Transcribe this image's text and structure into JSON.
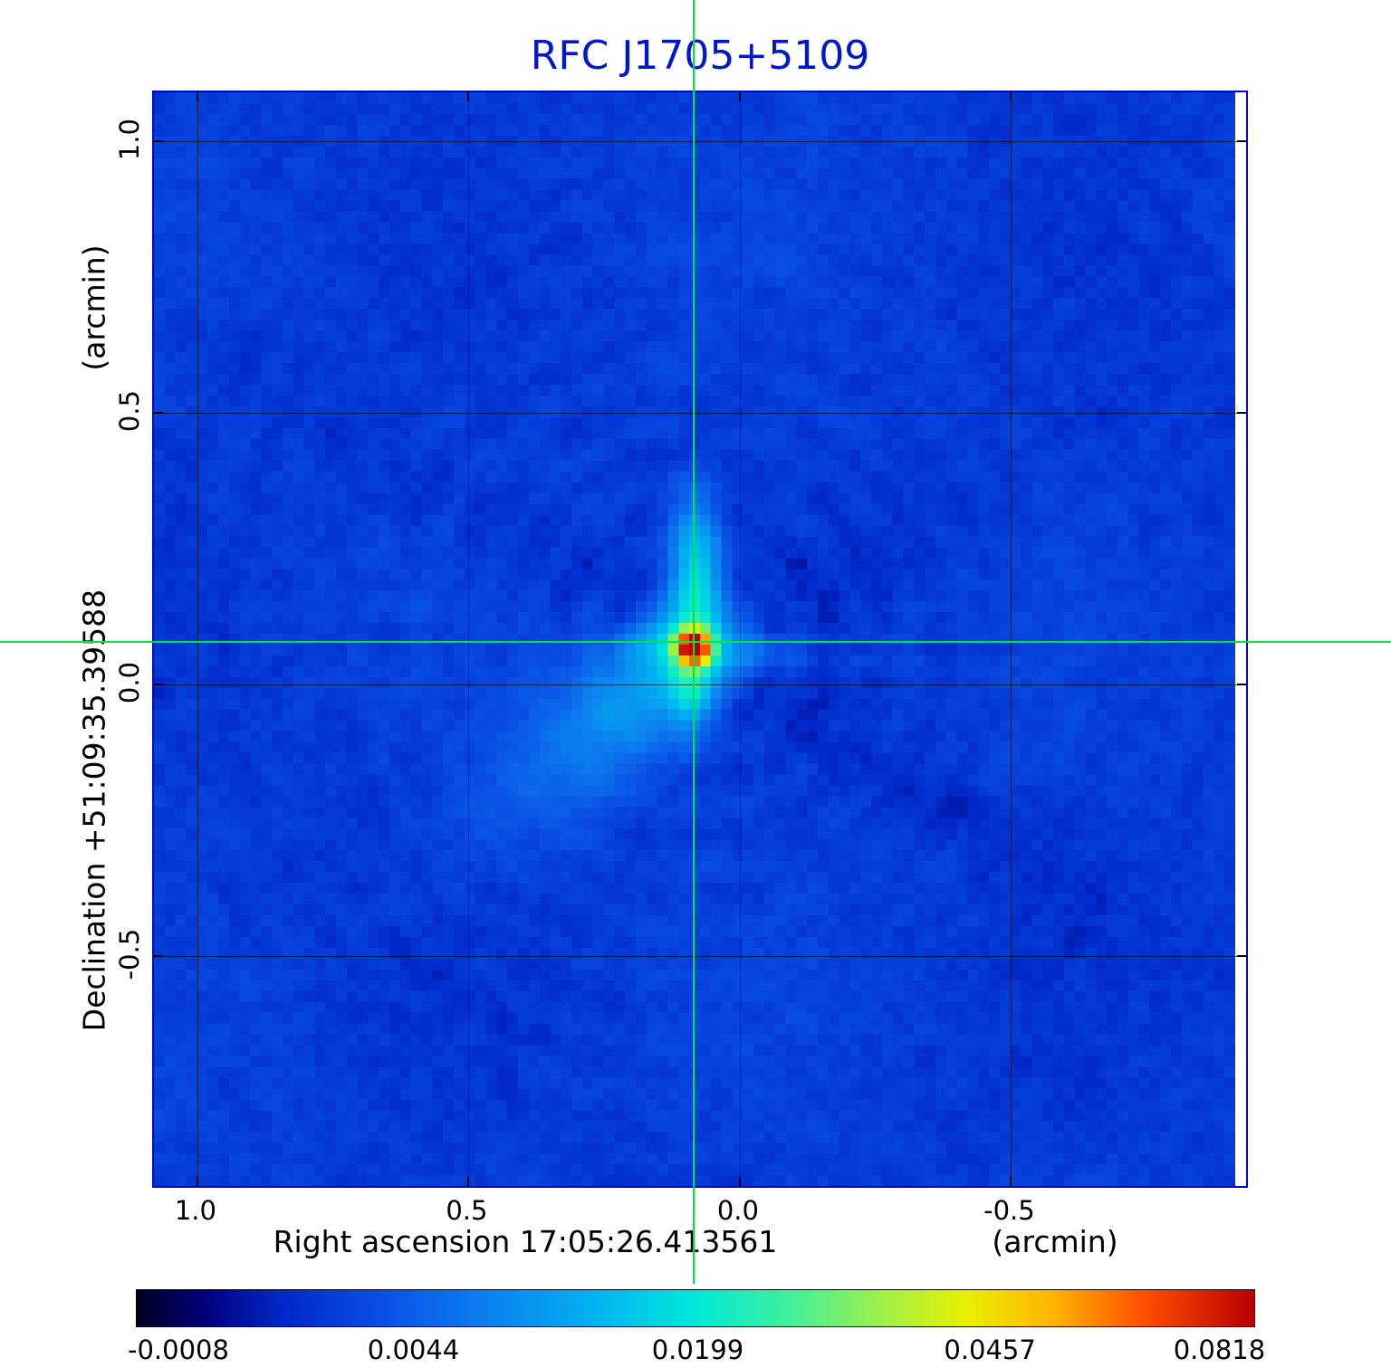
{
  "colors": {
    "page_bg": "#ffffff",
    "title": "#0018cc",
    "frame": "#0008c8",
    "grid": "#000000",
    "crosshair": "#00e640",
    "text": "#000000"
  },
  "chart_data": {
    "type": "heatmap",
    "title": "RFC J1705+5109",
    "xlabel": "Right ascension  17:05:26.413561",
    "xunit": "(arcmin)",
    "ylabel": "Declination  +51:09:35.39588",
    "yunit": "(arcmin)",
    "x_range": [
      1.08,
      -0.94
    ],
    "y_range": [
      1.09,
      -0.93
    ],
    "x_ticks": [
      {
        "value": 1.0,
        "label": "1.0"
      },
      {
        "value": 0.5,
        "label": "0.5"
      },
      {
        "value": 0.0,
        "label": "0.0"
      },
      {
        "value": -0.5,
        "label": "-0.5"
      }
    ],
    "y_ticks": [
      {
        "value": 1.0,
        "label": "1.0"
      },
      {
        "value": 0.5,
        "label": "0.5"
      },
      {
        "value": 0.0,
        "label": "0.0"
      },
      {
        "value": -0.5,
        "label": "-0.5"
      }
    ],
    "source": {
      "ra_offset_arcmin": 0.082,
      "dec_offset_arcmin": 0.075,
      "peak": 0.0818
    },
    "colorbar": {
      "min": -0.0008,
      "max": 0.0818,
      "scale": "sqrt",
      "ticks": [
        {
          "label": "-0.0008",
          "pos": 0.038
        },
        {
          "label": "0.0044",
          "pos": 0.248
        },
        {
          "label": "0.0199",
          "pos": 0.502
        },
        {
          "label": "0.0457",
          "pos": 0.763
        },
        {
          "label": "0.0818",
          "pos": 0.968
        }
      ],
      "stops": [
        {
          "pos": 0.0,
          "color": "#000020"
        },
        {
          "pos": 0.06,
          "color": "#000078"
        },
        {
          "pos": 0.13,
          "color": "#0028c8"
        },
        {
          "pos": 0.22,
          "color": "#0a50e6"
        },
        {
          "pos": 0.32,
          "color": "#0c84f0"
        },
        {
          "pos": 0.42,
          "color": "#00b8f0"
        },
        {
          "pos": 0.5,
          "color": "#00e8d8"
        },
        {
          "pos": 0.58,
          "color": "#3cf0a0"
        },
        {
          "pos": 0.66,
          "color": "#96f050"
        },
        {
          "pos": 0.74,
          "color": "#e8f000"
        },
        {
          "pos": 0.82,
          "color": "#ffb400"
        },
        {
          "pos": 0.9,
          "color": "#ff5000"
        },
        {
          "pos": 1.0,
          "color": "#b80000"
        }
      ]
    },
    "render": {
      "seed": 20247,
      "background_level": 0.0017,
      "noise_amp": 0.0011
    }
  }
}
